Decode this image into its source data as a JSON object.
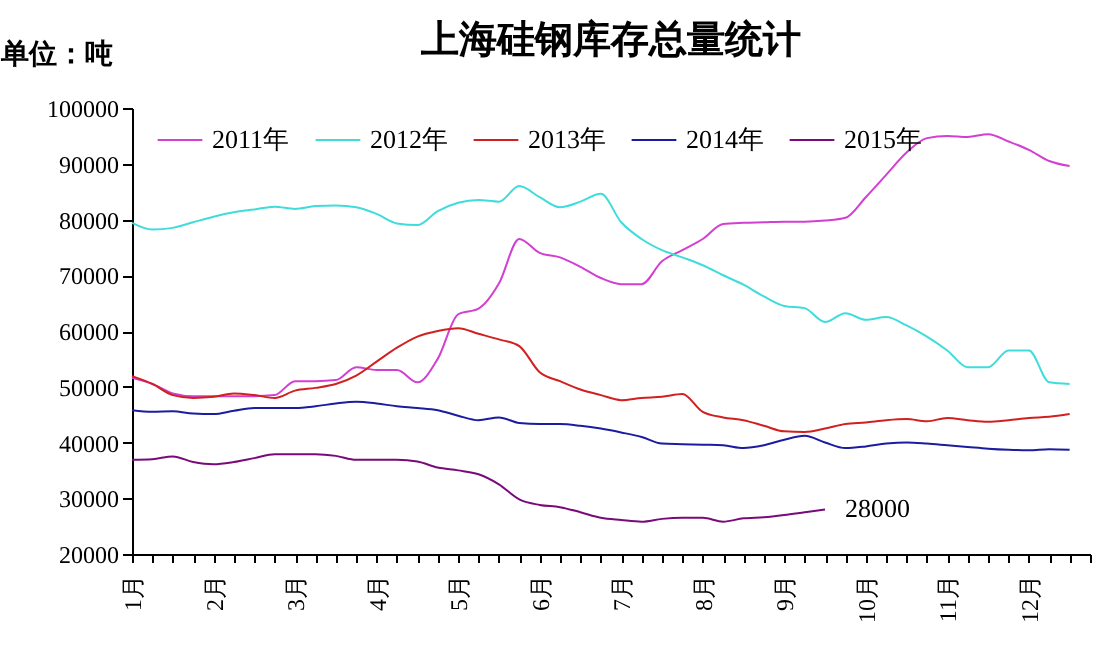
{
  "chart_data": {
    "type": "line",
    "title": "上海硅钢库存总量统计",
    "ylabel": "单位：吨",
    "categories": [
      "1月",
      null,
      null,
      null,
      "2月",
      null,
      null,
      null,
      "3月",
      null,
      null,
      null,
      "4月",
      null,
      null,
      null,
      "5月",
      null,
      null,
      null,
      "6月",
      null,
      null,
      null,
      "7月",
      null,
      null,
      null,
      "8月",
      null,
      null,
      null,
      "9月",
      null,
      null,
      null,
      "10月",
      null,
      null,
      null,
      "11月",
      null,
      null,
      null,
      "12月",
      null,
      null,
      null
    ],
    "ylim": [
      20000,
      100000
    ],
    "yticks": [
      20000,
      30000,
      40000,
      50000,
      60000,
      70000,
      80000,
      90000,
      100000
    ],
    "grid": false,
    "legend": "top",
    "marker": "none",
    "line_style": "solid",
    "series": [
      {
        "name": "2011年",
        "color": "#d23fd2",
        "values": [
          51600,
          50500,
          48800,
          48300,
          48300,
          48300,
          48300,
          48500,
          51000,
          51000,
          51200,
          53500,
          53000,
          53000,
          50800,
          55000,
          63000,
          64000,
          68500,
          76500,
          74000,
          73200,
          71500,
          69500,
          68400,
          68400,
          72500,
          74500,
          76500,
          79200,
          79400,
          79500,
          79600,
          79600,
          79800,
          80300,
          84000,
          88000,
          92000,
          94600,
          95000,
          94800,
          95300,
          94000,
          92500,
          90500,
          89600,
          null
        ]
      },
      {
        "name": "2012年",
        "color": "#40dcdc",
        "values": [
          79400,
          78200,
          78500,
          79500,
          80500,
          81300,
          81800,
          82300,
          81900,
          82400,
          82500,
          82200,
          81000,
          79300,
          79000,
          81500,
          83000,
          83500,
          83200,
          86000,
          84000,
          82200,
          83200,
          84600,
          79500,
          76500,
          74500,
          73200,
          71800,
          70000,
          68300,
          66200,
          64500,
          64100,
          61600,
          63200,
          62000,
          62500,
          61000,
          59000,
          56500,
          53500,
          53500,
          56500,
          56500,
          50800,
          50500,
          null
        ]
      },
      {
        "name": "2013年",
        "color": "#d02020",
        "values": [
          51900,
          50500,
          48500,
          48000,
          48200,
          48800,
          48500,
          48000,
          49300,
          49800,
          50500,
          52000,
          54500,
          57000,
          59000,
          60000,
          60500,
          59500,
          58500,
          57300,
          52600,
          51000,
          49500,
          48500,
          47600,
          48000,
          48200,
          48700,
          45500,
          44500,
          44000,
          43000,
          42000,
          41900,
          42500,
          43300,
          43600,
          44000,
          44200,
          43800,
          44400,
          44000,
          43700,
          44000,
          44400,
          44600,
          45100,
          null
        ]
      },
      {
        "name": "2014年",
        "color": "#1c1ca0",
        "values": [
          45800,
          45500,
          45600,
          45200,
          45100,
          45700,
          46200,
          46200,
          46200,
          46500,
          47000,
          47300,
          47000,
          46500,
          46200,
          45800,
          44800,
          44000,
          44500,
          43500,
          43300,
          43300,
          43000,
          42500,
          41800,
          41000,
          39800,
          39700,
          39600,
          39500,
          39000,
          39500,
          40500,
          41200,
          40000,
          39000,
          39300,
          39800,
          40000,
          39800,
          39500,
          39200,
          38900,
          38700,
          38600,
          38800,
          38700,
          null
        ]
      },
      {
        "name": "2015年",
        "color": "#7a0a7a",
        "values": [
          36900,
          37000,
          37500,
          36500,
          36100,
          36500,
          37200,
          37900,
          37900,
          37900,
          37600,
          36900,
          36900,
          36900,
          36600,
          35500,
          35000,
          34300,
          32500,
          29800,
          28800,
          28400,
          27500,
          26500,
          26100,
          25800,
          26300,
          26500,
          26500,
          25800,
          26400,
          26600,
          27000,
          27500,
          28000,
          null,
          null,
          null,
          null,
          null,
          null,
          null,
          null,
          null,
          null,
          null,
          null,
          null
        ],
        "value_labels": [
          null,
          null,
          null,
          null,
          null,
          null,
          null,
          null,
          null,
          null,
          null,
          null,
          null,
          null,
          null,
          null,
          null,
          null,
          null,
          null,
          null,
          null,
          null,
          null,
          null,
          null,
          null,
          null,
          null,
          null,
          null,
          null,
          null,
          null,
          "28000",
          null,
          null,
          null,
          null,
          null,
          null,
          null,
          null,
          null,
          null,
          null,
          null,
          null
        ]
      }
    ]
  }
}
